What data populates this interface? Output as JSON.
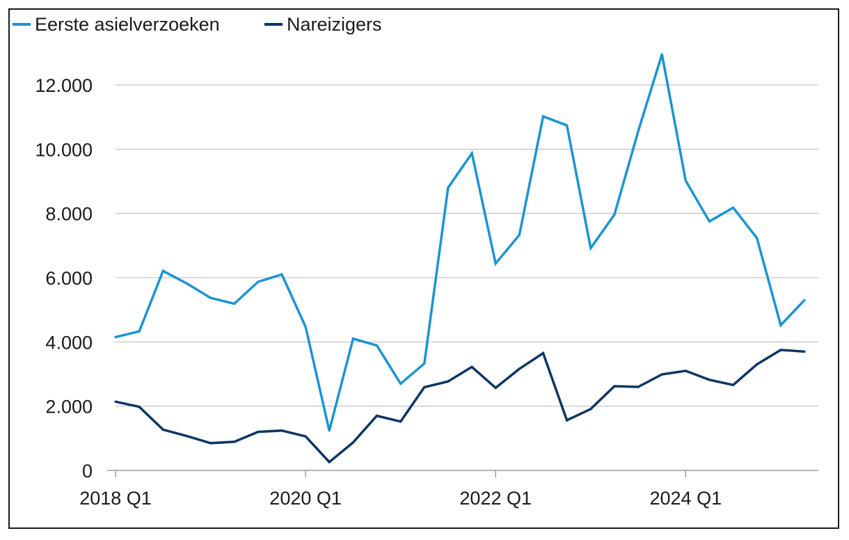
{
  "chart_data": {
    "type": "line",
    "title": "",
    "xlabel": "",
    "ylabel": "",
    "ylim": [
      0,
      13000
    ],
    "y_ticks": [
      0,
      2000,
      4000,
      6000,
      8000,
      10000,
      12000
    ],
    "y_tick_labels": [
      "0",
      "2.000",
      "4.000",
      "6.000",
      "8.000",
      "10.000",
      "12.000"
    ],
    "x": [
      "2018 Q1",
      "2018 Q2",
      "2018 Q3",
      "2018 Q4",
      "2019 Q1",
      "2019 Q2",
      "2019 Q3",
      "2019 Q4",
      "2020 Q1",
      "2020 Q2",
      "2020 Q3",
      "2020 Q4",
      "2021 Q1",
      "2021 Q2",
      "2021 Q3",
      "2021 Q4",
      "2022 Q1",
      "2022 Q2",
      "2022 Q3",
      "2022 Q4",
      "2023 Q1",
      "2023 Q2",
      "2023 Q3",
      "2023 Q4",
      "2024 Q1",
      "2024 Q2",
      "2024 Q3",
      "2024 Q4",
      "2025 Q1",
      "2025 Q2"
    ],
    "x_tick_labels": [
      "2018 Q1",
      "2020 Q1",
      "2022 Q1",
      "2024 Q1"
    ],
    "x_tick_positions": [
      "2018 Q1",
      "2020 Q1",
      "2022 Q1",
      "2024 Q1"
    ],
    "grid": "horizontal",
    "legend_position": "top-left",
    "series": [
      {
        "name": "Eerste asielverzoeken",
        "color": "#1a94d4",
        "values": [
          4150,
          4330,
          6210,
          5820,
          5370,
          5190,
          5870,
          6100,
          4470,
          1240,
          4100,
          3890,
          2700,
          3330,
          8800,
          9870,
          6440,
          7330,
          11020,
          10740,
          6920,
          7960,
          10550,
          12950,
          9020,
          7750,
          8180,
          7230,
          4520,
          5300
        ]
      },
      {
        "name": "Nareizigers",
        "color": "#0d3566",
        "values": [
          2140,
          1980,
          1270,
          1070,
          850,
          890,
          1200,
          1240,
          1060,
          260,
          870,
          1700,
          1520,
          2590,
          2770,
          3220,
          2570,
          3160,
          3650,
          1560,
          1910,
          2620,
          2600,
          2990,
          3100,
          2820,
          2660,
          3300,
          3750,
          3700
        ]
      }
    ]
  }
}
